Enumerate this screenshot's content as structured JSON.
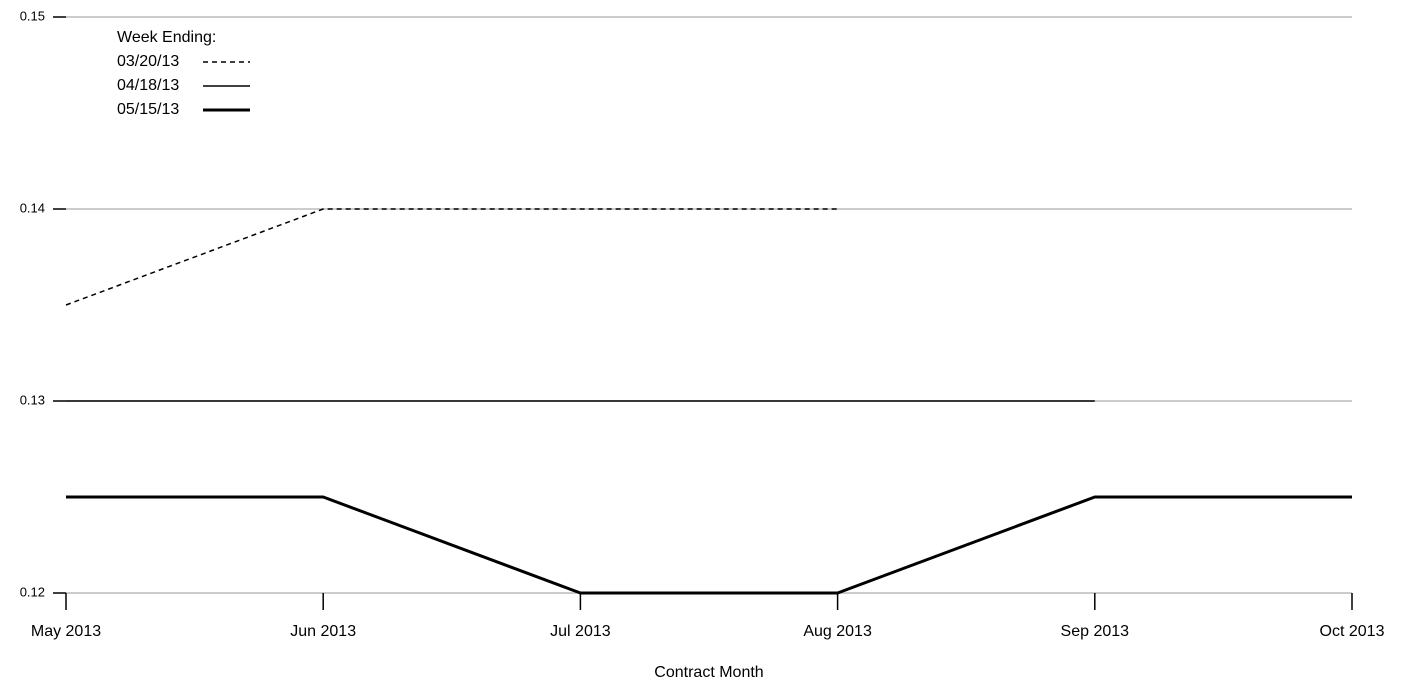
{
  "chart_data": {
    "type": "line",
    "x_label": "Contract Month",
    "legend_title": "Week Ending:",
    "legend_position": "top-left",
    "categories": [
      "May 2013",
      "Jun 2013",
      "Jul 2013",
      "Aug 2013",
      "Sep 2013",
      "Oct 2013"
    ],
    "series": [
      {
        "name": "03/20/13",
        "color": "#000000",
        "dashed": true,
        "width": 1.5,
        "values": [
          0.135,
          0.14,
          0.14,
          0.14,
          null,
          null
        ]
      },
      {
        "name": "04/18/13",
        "color": "#000000",
        "dashed": false,
        "width": 1.5,
        "values": [
          0.13,
          0.13,
          0.13,
          0.13,
          0.13,
          null
        ]
      },
      {
        "name": "05/15/13",
        "color": "#000000",
        "dashed": false,
        "width": 3,
        "values": [
          0.125,
          0.125,
          0.12,
          0.12,
          0.125,
          0.125
        ]
      }
    ],
    "ylim": [
      0.12,
      0.15
    ],
    "yticks": [
      0.12,
      0.13,
      0.14,
      0.15
    ],
    "grid": true
  }
}
